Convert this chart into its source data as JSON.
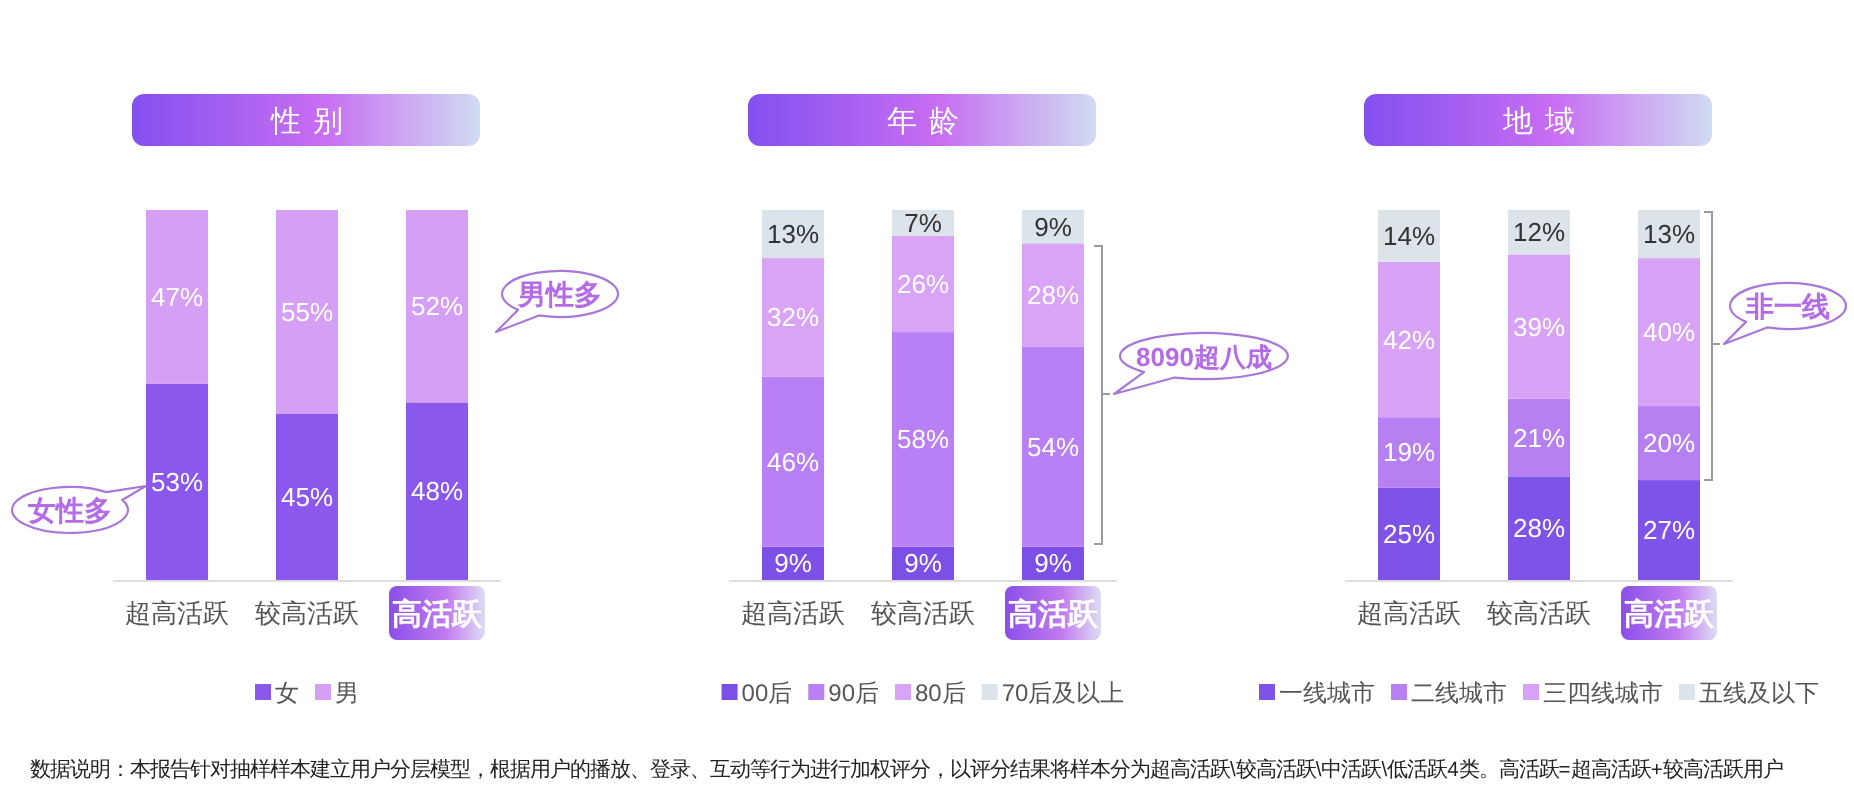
{
  "chart_data": [
    {
      "type": "bar",
      "stacked": true,
      "title": "性别",
      "categories": [
        "超高活跃",
        "较高活跃",
        "高活跃"
      ],
      "legend": "bottom",
      "series": [
        {
          "name": "女",
          "color": "#8b58ee",
          "values": [
            53,
            45,
            48
          ],
          "value_labels": [
            "53%",
            "45%",
            "48%"
          ]
        },
        {
          "name": "男",
          "color": "#d69ff6",
          "values": [
            47,
            55,
            52
          ],
          "value_labels": [
            "47%",
            "55%",
            "52%"
          ]
        }
      ],
      "annotations": [
        "女性多",
        "男性多"
      ]
    },
    {
      "type": "bar",
      "stacked": true,
      "title": "年龄",
      "categories": [
        "超高活跃",
        "较高活跃",
        "高活跃"
      ],
      "legend": "bottom",
      "series": [
        {
          "name": "00后",
          "color": "#7c4fe6",
          "values": [
            9,
            9,
            9
          ],
          "value_labels": [
            "9%",
            "9%",
            "9%"
          ]
        },
        {
          "name": "90后",
          "color": "#b97ff4",
          "values": [
            46,
            58,
            54
          ],
          "value_labels": [
            "46%",
            "58%",
            "54%"
          ]
        },
        {
          "name": "80后",
          "color": "#d9a3f6",
          "values": [
            32,
            26,
            28
          ],
          "value_labels": [
            "32%",
            "26%",
            "28%"
          ]
        },
        {
          "name": "70后及以上",
          "color": "#dbe4ea",
          "values": [
            13,
            7,
            9
          ],
          "value_labels": [
            "13%",
            "7%",
            "9%"
          ]
        }
      ],
      "annotations": [
        "8090超八成"
      ]
    },
    {
      "type": "bar",
      "stacked": true,
      "title": "地域",
      "categories": [
        "超高活跃",
        "较高活跃",
        "高活跃"
      ],
      "legend": "bottom",
      "series": [
        {
          "name": "一线城市",
          "color": "#7f52e8",
          "values": [
            25,
            28,
            27
          ],
          "value_labels": [
            "25%",
            "28%",
            "27%"
          ]
        },
        {
          "name": "二线城市",
          "color": "#b680f3",
          "values": [
            19,
            21,
            20
          ],
          "value_labels": [
            "19%",
            "21%",
            "20%"
          ]
        },
        {
          "name": "三四线城市",
          "color": "#d8a3f6",
          "values": [
            42,
            39,
            40
          ],
          "value_labels": [
            "42%",
            "39%",
            "40%"
          ]
        },
        {
          "name": "五线及以下",
          "color": "#dce4ea",
          "values": [
            14,
            12,
            13
          ],
          "value_labels": [
            "14%",
            "12%",
            "13%"
          ]
        }
      ],
      "annotations": [
        "非一线",
        "数据说明：本报告针对抽样样本建立用户分层模型，根据用户的播放、登录、互动等行为进行加权评分，以评分结果将样本分为超高活跃\\较高活跃\\中活跃\\低活跃4类。高活跃=超高活跃+较高活跃用户"
      ]
    }
  ]
}
